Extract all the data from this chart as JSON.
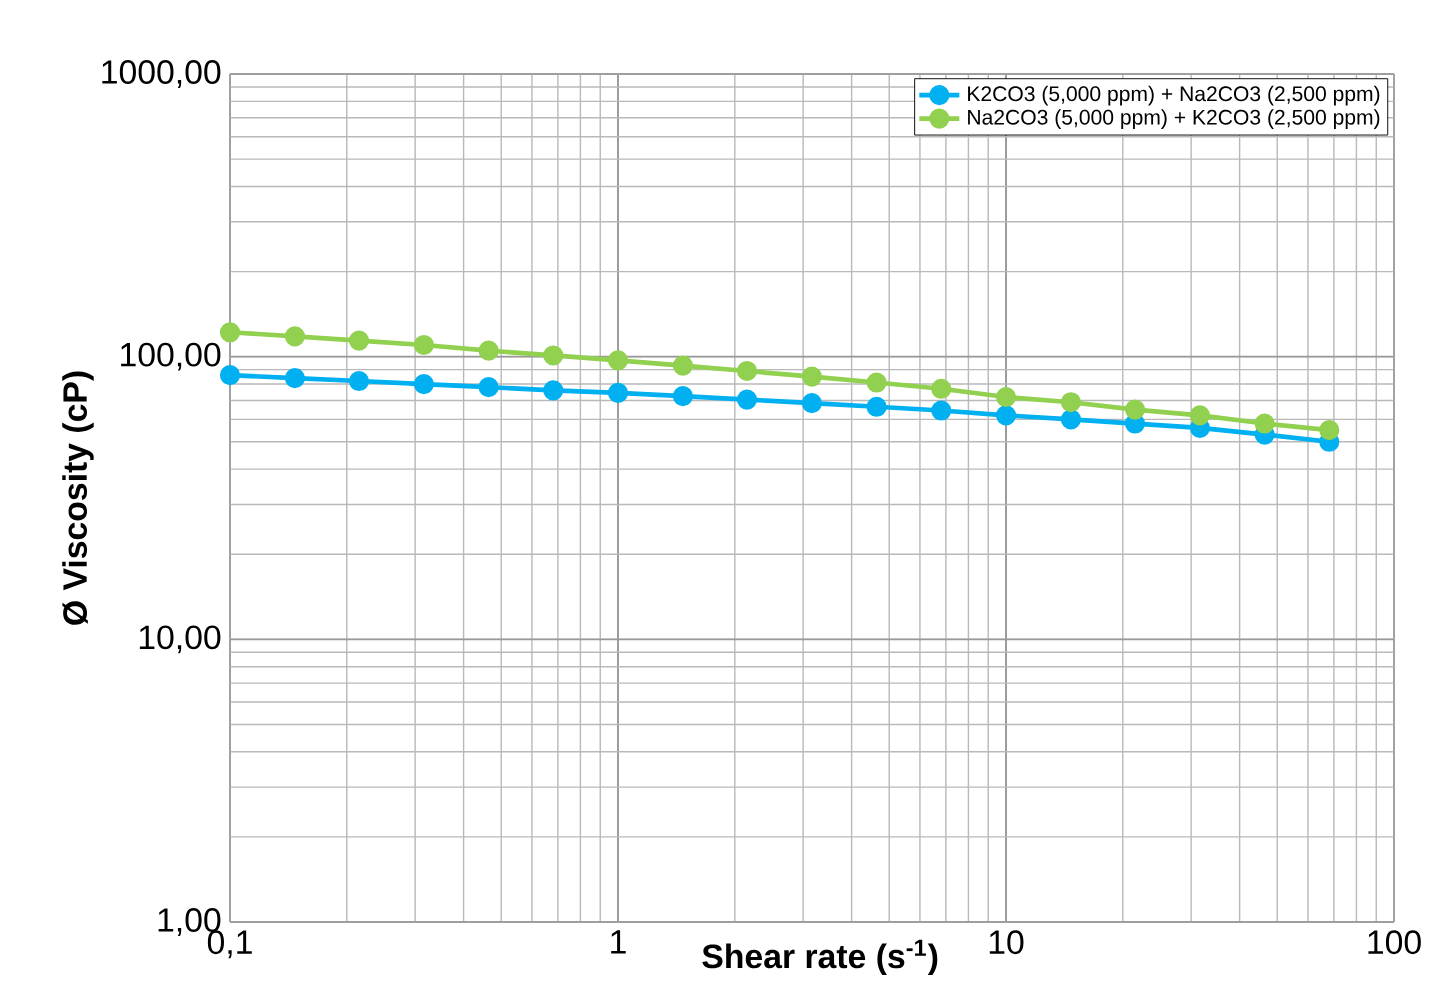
{
  "chart_data": {
    "type": "line",
    "xlabel": "Shear rate  (s$^{-1}$)",
    "ylabel": "Ø Viscosity   (cP)",
    "x": [
      0.1,
      0.147,
      0.215,
      0.316,
      0.464,
      0.681,
      1,
      1.47,
      2.15,
      3.16,
      4.64,
      6.81,
      10,
      14.7,
      21.5,
      31.6,
      46.4,
      68.1
    ],
    "series": [
      {
        "name": "K2CO3 (5,000 ppm) + Na2CO3 (2,500 ppm)",
        "color": "#00b0f0",
        "values": [
          86,
          84,
          82,
          80,
          78,
          76,
          74.5,
          72.5,
          70.5,
          68.5,
          66.5,
          64.5,
          62,
          60,
          58,
          56,
          53,
          50
        ]
      },
      {
        "name": "Na2CO3 (5,000 ppm) + K2CO3 (2,500 ppm)",
        "color": "#92d050",
        "values": [
          122,
          118,
          114,
          110,
          105,
          101,
          97,
          93,
          89,
          85,
          81,
          77,
          72,
          69,
          65,
          62,
          58,
          55
        ]
      }
    ],
    "log": "xy",
    "xlim": [
      0.1,
      100
    ],
    "ylim": [
      1,
      1000
    ],
    "xticks": [
      {
        "value": 0.1,
        "label": "0,1"
      },
      1,
      10,
      100
    ],
    "yticks": [
      {
        "value": 1,
        "label": "1,00"
      },
      {
        "value": 10,
        "label": "10,00"
      },
      {
        "value": 100,
        "label": "100,00"
      },
      {
        "value": 1000,
        "label": "1000,00"
      }
    ],
    "grid": true,
    "legend": "top right",
    "marker": "circle",
    "line_style": "solid"
  }
}
